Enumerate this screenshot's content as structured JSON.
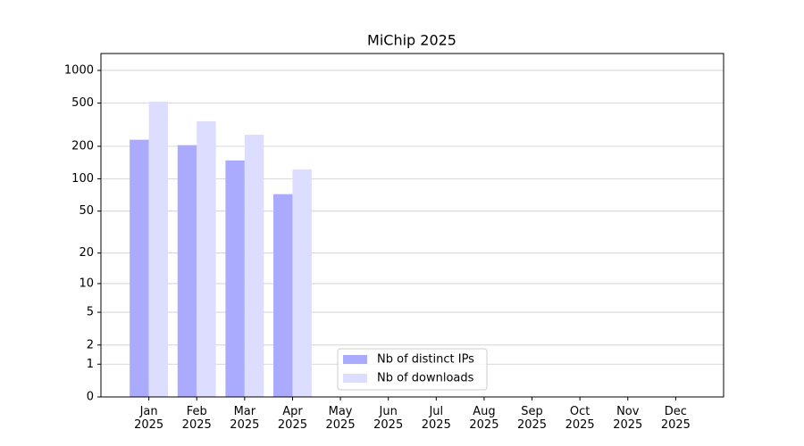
{
  "chart_data": {
    "type": "bar",
    "title": "MiChip 2025",
    "categories": [
      "Jan 2025",
      "Feb 2025",
      "Mar 2025",
      "Apr 2025",
      "May 2025",
      "Jun 2025",
      "Jul 2025",
      "Aug 2025",
      "Sep 2025",
      "Oct 2025",
      "Nov 2025",
      "Dec 2025"
    ],
    "series": [
      {
        "name": "Nb of distinct IPs",
        "color": "#aaaaff",
        "values": [
          230,
          205,
          148,
          72,
          null,
          null,
          null,
          null,
          null,
          null,
          null,
          null
        ]
      },
      {
        "name": "Nb of downloads",
        "color": "#ddddff",
        "values": [
          515,
          340,
          256,
          122,
          null,
          null,
          null,
          null,
          null,
          null,
          null,
          null
        ]
      }
    ],
    "yscale": "log1p",
    "ylim": [
      0,
      1430
    ],
    "yticks": [
      0,
      1,
      2,
      5,
      10,
      20,
      50,
      100,
      200,
      500,
      1000
    ],
    "grid": true,
    "legend": "lower center"
  }
}
